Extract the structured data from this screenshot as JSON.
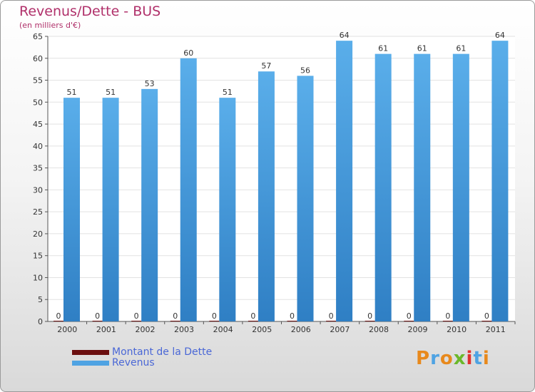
{
  "chart_data": {
    "type": "bar",
    "title": "Revenus/Dette - BUS",
    "subtitle": "(en milliers d'€)",
    "categories": [
      "2000",
      "2001",
      "2002",
      "2003",
      "2004",
      "2005",
      "2006",
      "2007",
      "2008",
      "2009",
      "2010",
      "2011"
    ],
    "series": [
      {
        "name": "Montant de la Dette",
        "color": "#6b0f0f",
        "values": [
          0,
          0,
          0,
          0,
          0,
          0,
          0,
          0,
          0,
          0,
          0,
          0
        ]
      },
      {
        "name": "Revenus",
        "color": "#4fa3e3",
        "values": [
          51,
          51,
          53,
          60,
          51,
          57,
          56,
          64,
          61,
          61,
          61,
          64
        ]
      }
    ],
    "yticks": [
      0,
      5,
      10,
      15,
      20,
      25,
      30,
      35,
      40,
      45,
      50,
      55,
      60,
      65
    ],
    "ylim": [
      0,
      65
    ],
    "grid": true,
    "legend_position": "bottom-left"
  },
  "logo": {
    "text": "Proxiti",
    "letter_colors": [
      "#e8891c",
      "#4fa3e3",
      "#e8891c",
      "#6bb82a",
      "#e03030",
      "#4fa3e3",
      "#e8891c"
    ]
  }
}
